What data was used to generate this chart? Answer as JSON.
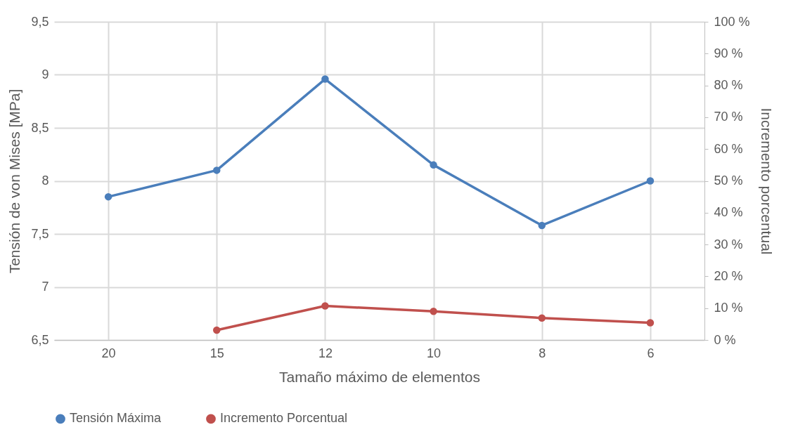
{
  "chart_data": {
    "type": "line",
    "xlabel": "Tamaño máximo de elementos",
    "ylabel": "Tensión de von Mises [MPa]",
    "y2label": "Incremento porcentual",
    "categories": [
      "20",
      "15",
      "12",
      "10",
      "8",
      "6"
    ],
    "series": [
      {
        "name": "Tensión Máxima",
        "color": "#4a7ebb",
        "values": [
          7.85,
          8.1,
          8.96,
          8.15,
          7.58,
          8.0
        ]
      },
      {
        "name": "Incremento Porcentual",
        "color": "#c0504d",
        "axis": "y2",
        "values": [
          null,
          3.1,
          10.7,
          9.0,
          6.9,
          5.4
        ]
      }
    ],
    "ylim": [
      6.5,
      9.5
    ],
    "yticks": [
      {
        "value": 6.5,
        "label": "6,5"
      },
      7,
      {
        "value": 7.5,
        "label": "7,5"
      },
      8,
      {
        "value": 8.5,
        "label": "8,5"
      },
      9,
      {
        "value": 9.5,
        "label": "9,5"
      }
    ],
    "y2lim": [
      0,
      100
    ],
    "y2ticks": [
      {
        "value": 0,
        "label": "0 %"
      },
      {
        "value": 10,
        "label": "10 %"
      },
      {
        "value": 20,
        "label": "20 %"
      },
      {
        "value": 30,
        "label": "30 %"
      },
      {
        "value": 40,
        "label": "40 %"
      },
      {
        "value": 50,
        "label": "50 %"
      },
      {
        "value": 60,
        "label": "60 %"
      },
      {
        "value": 70,
        "label": "70 %"
      },
      {
        "value": 80,
        "label": "80 %"
      },
      {
        "value": 90,
        "label": "90 %"
      },
      {
        "value": 100,
        "label": "100 %"
      }
    ],
    "grid": true,
    "legend": "bottom",
    "marker": "circle",
    "line_style": "solid"
  }
}
